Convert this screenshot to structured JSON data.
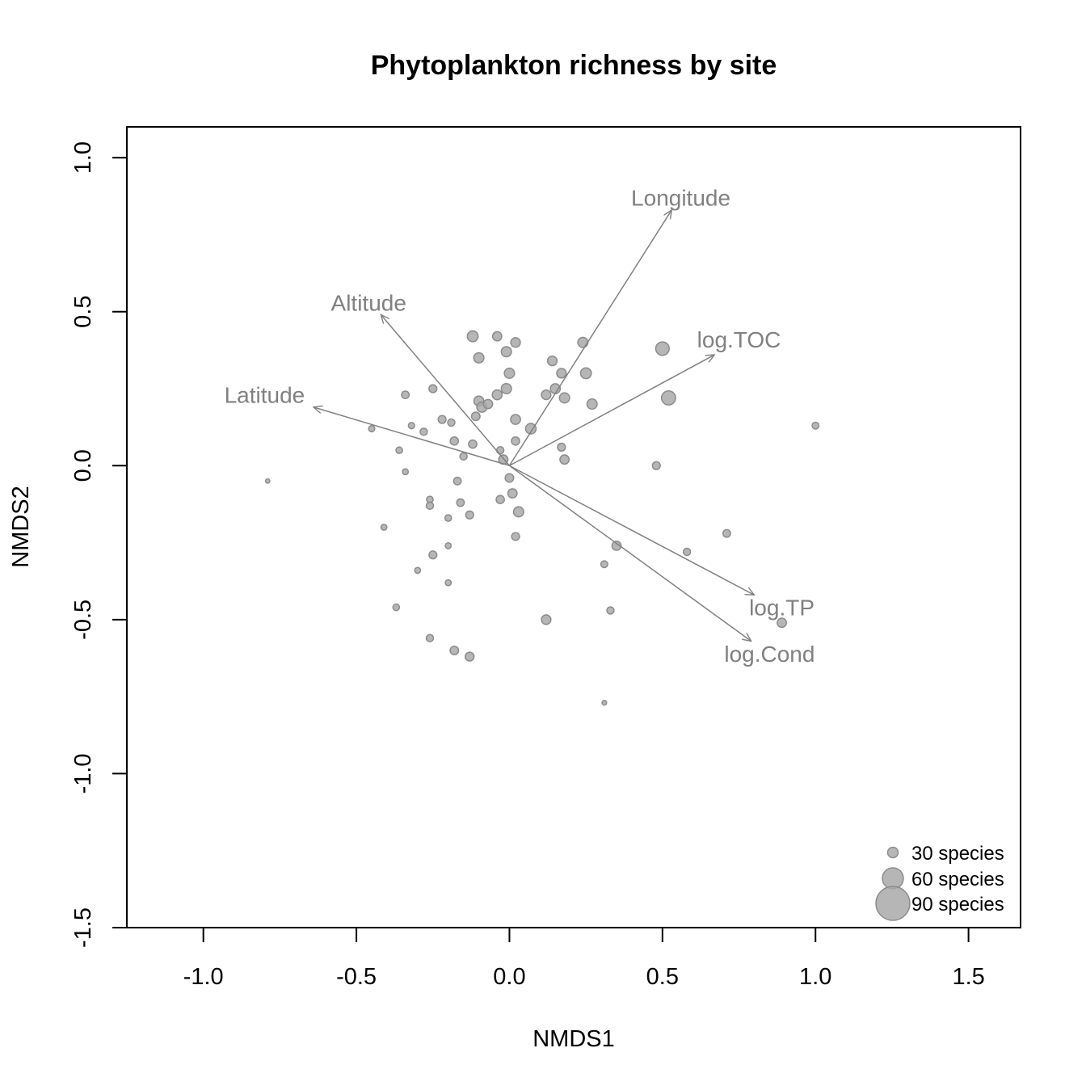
{
  "chart_data": {
    "type": "scatter",
    "title": "Phytoplankton richness by site",
    "xlabel": "NMDS1",
    "ylabel": "NMDS2",
    "xlim": [
      -1.25,
      1.67
    ],
    "ylim": [
      -1.5,
      1.1
    ],
    "xticks": [
      "-1.0",
      "-0.5",
      "0.0",
      "0.5",
      "1.0",
      "1.5"
    ],
    "xtick_values": [
      -1.0,
      -0.5,
      0.0,
      0.5,
      1.0,
      1.5
    ],
    "yticks": [
      "-1.5",
      "-1.0",
      "-0.5",
      "0.0",
      "0.5",
      "1.0"
    ],
    "ytick_values": [
      -1.5,
      -1.0,
      -0.5,
      0.0,
      0.5,
      1.0
    ],
    "grid": false,
    "point_color": "#a9a9a9",
    "vector_color": "#808080",
    "points": [
      {
        "x": -0.79,
        "y": -0.05,
        "size": 26
      },
      {
        "x": -0.45,
        "y": 0.12,
        "size": 38
      },
      {
        "x": -0.41,
        "y": -0.2,
        "size": 36
      },
      {
        "x": -0.37,
        "y": -0.46,
        "size": 40
      },
      {
        "x": -0.36,
        "y": 0.05,
        "size": 40
      },
      {
        "x": -0.34,
        "y": -0.02,
        "size": 36
      },
      {
        "x": -0.34,
        "y": 0.23,
        "size": 46
      },
      {
        "x": -0.32,
        "y": 0.13,
        "size": 38
      },
      {
        "x": -0.3,
        "y": -0.34,
        "size": 36
      },
      {
        "x": -0.28,
        "y": 0.11,
        "size": 44
      },
      {
        "x": -0.26,
        "y": -0.11,
        "size": 40
      },
      {
        "x": -0.26,
        "y": -0.13,
        "size": 44
      },
      {
        "x": -0.26,
        "y": -0.56,
        "size": 44
      },
      {
        "x": -0.25,
        "y": -0.29,
        "size": 48
      },
      {
        "x": -0.25,
        "y": 0.25,
        "size": 48
      },
      {
        "x": -0.22,
        "y": 0.15,
        "size": 48
      },
      {
        "x": -0.2,
        "y": -0.17,
        "size": 40
      },
      {
        "x": -0.2,
        "y": -0.26,
        "size": 36
      },
      {
        "x": -0.2,
        "y": -0.38,
        "size": 36
      },
      {
        "x": -0.19,
        "y": 0.14,
        "size": 44
      },
      {
        "x": -0.18,
        "y": 0.08,
        "size": 50
      },
      {
        "x": -0.18,
        "y": -0.6,
        "size": 52
      },
      {
        "x": -0.17,
        "y": -0.05,
        "size": 46
      },
      {
        "x": -0.16,
        "y": -0.12,
        "size": 46
      },
      {
        "x": -0.15,
        "y": 0.03,
        "size": 44
      },
      {
        "x": -0.13,
        "y": -0.62,
        "size": 54
      },
      {
        "x": -0.13,
        "y": -0.16,
        "size": 48
      },
      {
        "x": -0.12,
        "y": 0.07,
        "size": 50
      },
      {
        "x": -0.12,
        "y": 0.42,
        "size": 66
      },
      {
        "x": -0.11,
        "y": 0.16,
        "size": 52
      },
      {
        "x": -0.1,
        "y": 0.35,
        "size": 62
      },
      {
        "x": -0.1,
        "y": 0.21,
        "size": 60
      },
      {
        "x": -0.09,
        "y": 0.19,
        "size": 62
      },
      {
        "x": -0.07,
        "y": 0.2,
        "size": 56
      },
      {
        "x": -0.04,
        "y": 0.42,
        "size": 56
      },
      {
        "x": -0.04,
        "y": 0.23,
        "size": 60
      },
      {
        "x": -0.03,
        "y": 0.05,
        "size": 44
      },
      {
        "x": -0.03,
        "y": -0.11,
        "size": 50
      },
      {
        "x": -0.02,
        "y": 0.02,
        "size": 56
      },
      {
        "x": -0.01,
        "y": 0.37,
        "size": 62
      },
      {
        "x": -0.01,
        "y": 0.25,
        "size": 62
      },
      {
        "x": 0.0,
        "y": -0.04,
        "size": 52
      },
      {
        "x": 0.0,
        "y": 0.3,
        "size": 62
      },
      {
        "x": 0.01,
        "y": -0.09,
        "size": 56
      },
      {
        "x": 0.02,
        "y": 0.4,
        "size": 58
      },
      {
        "x": 0.02,
        "y": 0.15,
        "size": 60
      },
      {
        "x": 0.02,
        "y": 0.08,
        "size": 50
      },
      {
        "x": 0.02,
        "y": -0.23,
        "size": 48
      },
      {
        "x": 0.03,
        "y": -0.15,
        "size": 62
      },
      {
        "x": 0.07,
        "y": 0.12,
        "size": 64
      },
      {
        "x": 0.12,
        "y": -0.5,
        "size": 58
      },
      {
        "x": 0.12,
        "y": 0.23,
        "size": 58
      },
      {
        "x": 0.14,
        "y": 0.34,
        "size": 58
      },
      {
        "x": 0.15,
        "y": 0.25,
        "size": 60
      },
      {
        "x": 0.17,
        "y": 0.3,
        "size": 58
      },
      {
        "x": 0.17,
        "y": 0.06,
        "size": 48
      },
      {
        "x": 0.18,
        "y": 0.02,
        "size": 56
      },
      {
        "x": 0.18,
        "y": 0.22,
        "size": 62
      },
      {
        "x": 0.24,
        "y": 0.4,
        "size": 62
      },
      {
        "x": 0.25,
        "y": 0.3,
        "size": 66
      },
      {
        "x": 0.27,
        "y": 0.2,
        "size": 62
      },
      {
        "x": 0.31,
        "y": -0.32,
        "size": 42
      },
      {
        "x": 0.31,
        "y": -0.77,
        "size": 28
      },
      {
        "x": 0.33,
        "y": -0.47,
        "size": 44
      },
      {
        "x": 0.35,
        "y": -0.26,
        "size": 56
      },
      {
        "x": 0.48,
        "y": 0.0,
        "size": 48
      },
      {
        "x": 0.5,
        "y": 0.38,
        "size": 82
      },
      {
        "x": 0.52,
        "y": 0.22,
        "size": 86
      },
      {
        "x": 0.58,
        "y": -0.28,
        "size": 44
      },
      {
        "x": 0.71,
        "y": -0.22,
        "size": 46
      },
      {
        "x": 0.89,
        "y": -0.51,
        "size": 56
      },
      {
        "x": 1.0,
        "y": 0.13,
        "size": 42
      }
    ],
    "vectors": [
      {
        "name": "Longitude",
        "x": 0.53,
        "y": 0.83,
        "label_x": 0.56,
        "label_y": 0.87
      },
      {
        "name": "Altitude",
        "x": -0.42,
        "y": 0.49,
        "label_x": -0.46,
        "label_y": 0.53
      },
      {
        "name": "log.TOC",
        "x": 0.67,
        "y": 0.36,
        "label_x": 0.75,
        "label_y": 0.41
      },
      {
        "name": "Latitude",
        "x": -0.64,
        "y": 0.19,
        "label_x": -0.8,
        "label_y": 0.23
      },
      {
        "name": "log.TP",
        "x": 0.8,
        "y": -0.42,
        "label_x": 0.89,
        "label_y": -0.46
      },
      {
        "name": "log.Cond",
        "x": 0.79,
        "y": -0.57,
        "label_x": 0.85,
        "label_y": -0.61
      }
    ],
    "legend": {
      "position": "bottom-right",
      "entries": [
        {
          "label": "30 species",
          "size": 30
        },
        {
          "label": "60 species",
          "size": 60
        },
        {
          "label": "90 species",
          "size": 90
        }
      ]
    }
  }
}
